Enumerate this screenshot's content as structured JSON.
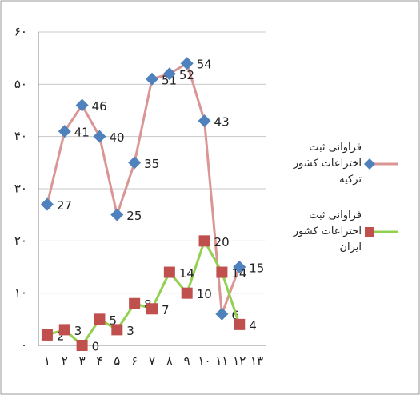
{
  "chart_data": {
    "type": "line",
    "categories": [
      "۱",
      "۲",
      "۳",
      "۴",
      "۵",
      "۶",
      "۷",
      "۸",
      "۹",
      "۱۰",
      "۱۱",
      "۱۲",
      "۱۳"
    ],
    "series": [
      {
        "name": "فراوانی ثبت اختراعات کشور ترکیه",
        "color": "#d99694",
        "marker": "diamond",
        "marker_color": "#4f81bd",
        "values": [
          27,
          41,
          46,
          40,
          25,
          35,
          51,
          52,
          54,
          43,
          6,
          15,
          null
        ]
      },
      {
        "name": "فراوانی ثبت اختراعات کشور ایران",
        "color": "#92d050",
        "marker": "square",
        "marker_color": "#c0504d",
        "values": [
          2,
          3,
          0,
          5,
          3,
          8,
          7,
          14,
          10,
          20,
          14,
          4,
          null
        ]
      }
    ],
    "ylim": [
      0,
      60
    ],
    "yticks": [
      {
        "value": 0,
        "label": "۰"
      },
      {
        "value": 10,
        "label": "۱۰"
      },
      {
        "value": 20,
        "label": "۲۰"
      },
      {
        "value": 30,
        "label": "۳۰"
      },
      {
        "value": 40,
        "label": "۴۰"
      },
      {
        "value": 50,
        "label": "۵۰"
      },
      {
        "value": 60,
        "label": "۶۰"
      }
    ],
    "grid": true,
    "legend": "right"
  }
}
